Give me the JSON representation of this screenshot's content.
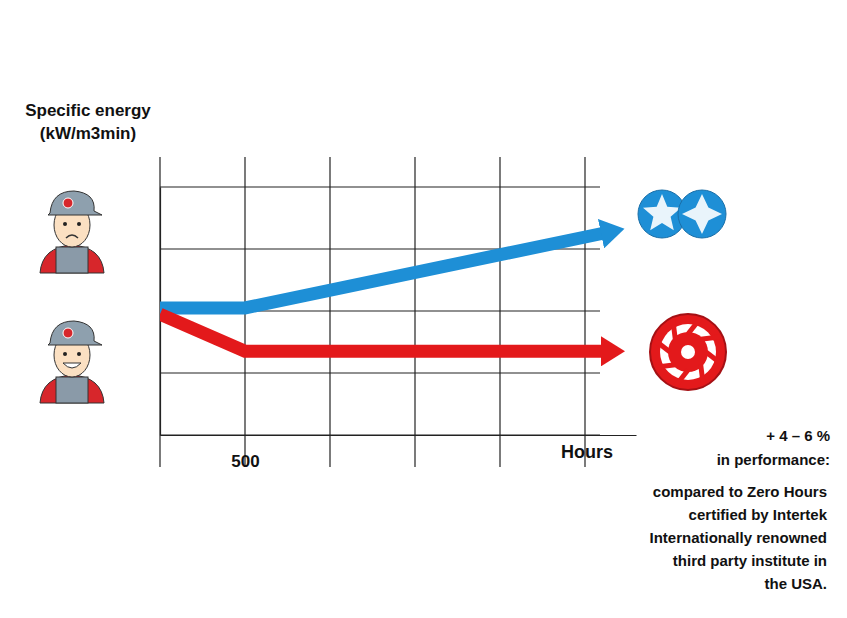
{
  "chart_data": {
    "type": "line",
    "ylabel": [
      "Specific energy",
      "(kW/m3min)"
    ],
    "xlabel": "Hours",
    "x": [
      0,
      500,
      2600
    ],
    "series": [
      {
        "color": "#1e8fd6",
        "values": [
          2.05,
          2.05,
          3.25
        ]
      },
      {
        "color": "#e3191b",
        "values": [
          1.95,
          1.35,
          1.35
        ]
      }
    ],
    "xlim": [
      0,
      2800
    ],
    "xticks": [
      {
        "value": 0,
        "label": null
      },
      500,
      {
        "value": 1000,
        "label": null
      },
      {
        "value": 1500,
        "label": null
      },
      {
        "value": 2000,
        "label": null
      },
      {
        "value": 2500,
        "label": null
      }
    ],
    "ylim": [
      0,
      4
    ],
    "yticks": [
      0,
      1,
      2,
      3,
      4
    ],
    "grid": true,
    "tick_labels": "x",
    "annotations": {
      "heading": [
        "+ 4 – 6 %",
        "in performance:"
      ],
      "note": [
        "compared to Zero Hours",
        "certified by Intertek",
        "Internationally renowned",
        "third party institute in",
        "the USA."
      ]
    }
  }
}
